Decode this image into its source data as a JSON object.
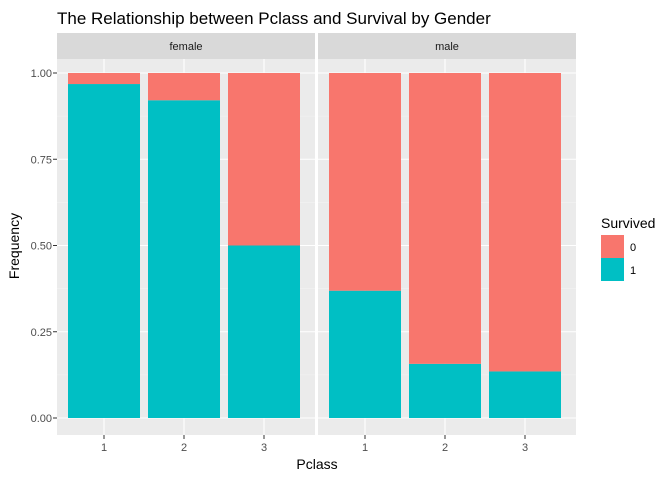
{
  "chart_data": {
    "type": "bar",
    "stacked": true,
    "title": "The Relationship between Pclass and Survival by Gender",
    "xlabel": "Pclass",
    "ylabel": "Frequency",
    "ylim": [
      0,
      1
    ],
    "yticks": [
      "0.00",
      "0.25",
      "0.50",
      "0.75",
      "1.00"
    ],
    "categories": [
      "1",
      "2",
      "3"
    ],
    "grid": true,
    "legend": {
      "title": "Survived",
      "position": "right",
      "entries": [
        {
          "label": "0",
          "color": "#F8766D"
        },
        {
          "label": "1",
          "color": "#00BFC4"
        }
      ]
    },
    "facets": [
      {
        "name": "female",
        "series": [
          {
            "name": "1",
            "color": "#00BFC4",
            "values": [
              0.968,
              0.921,
              0.5
            ]
          },
          {
            "name": "0",
            "color": "#F8766D",
            "values": [
              0.032,
              0.079,
              0.5
            ]
          }
        ]
      },
      {
        "name": "male",
        "series": [
          {
            "name": "1",
            "color": "#00BFC4",
            "values": [
              0.369,
              0.157,
              0.135
            ]
          },
          {
            "name": "0",
            "color": "#F8766D",
            "values": [
              0.631,
              0.843,
              0.865
            ]
          }
        ]
      }
    ]
  }
}
